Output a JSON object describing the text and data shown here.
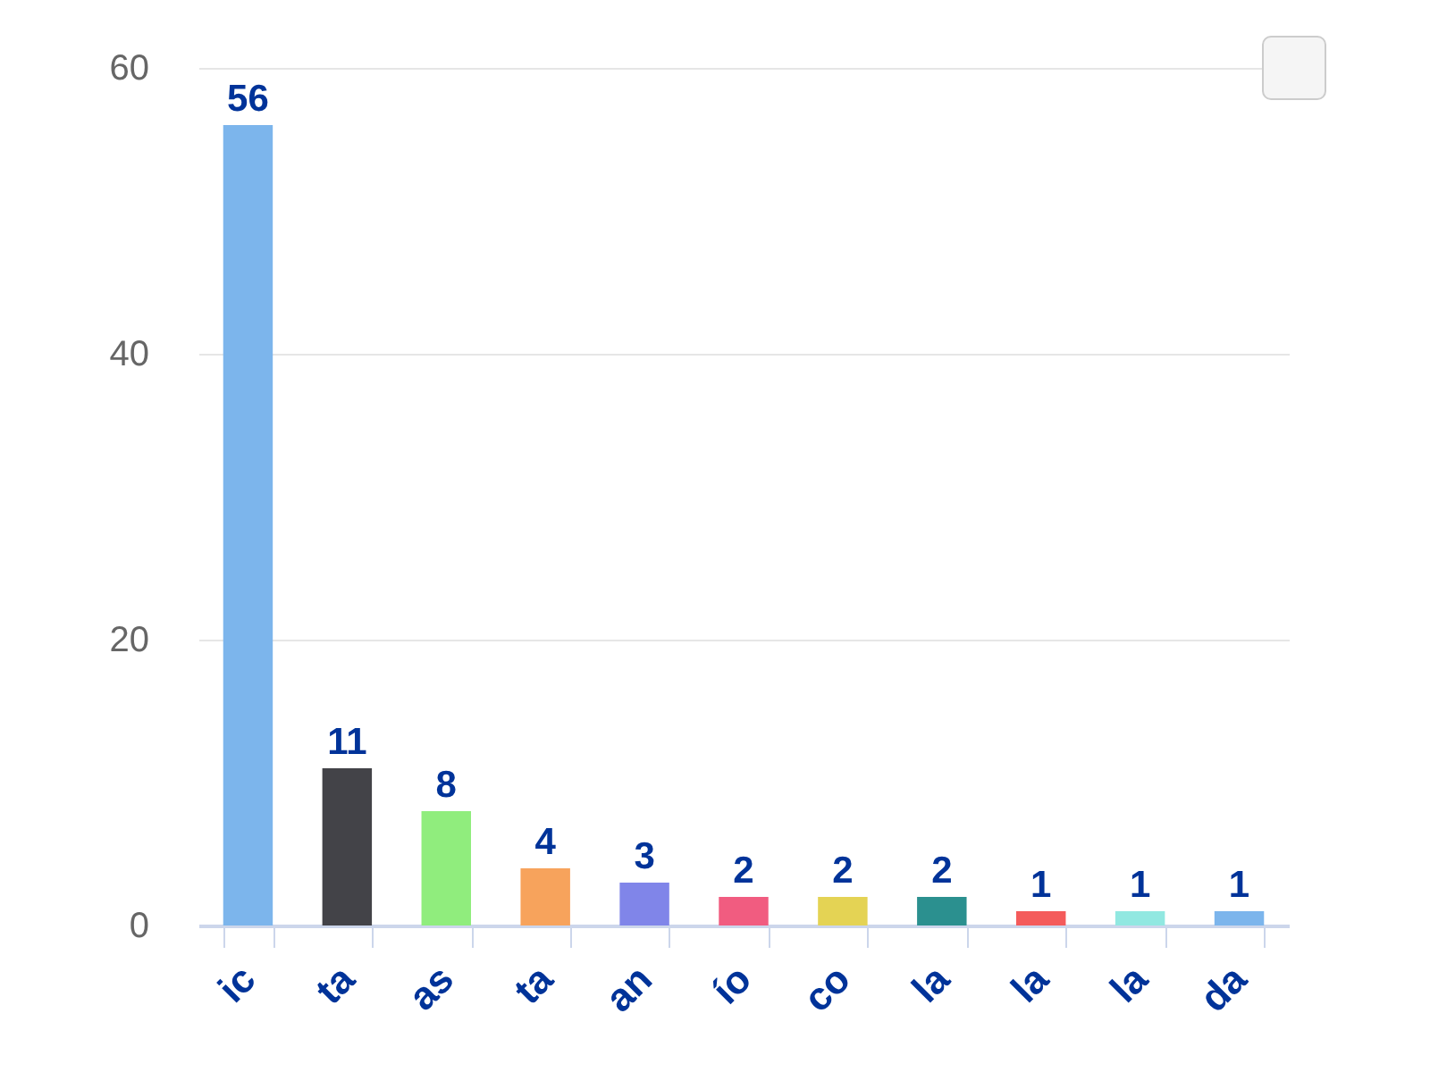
{
  "chart_data": {
    "type": "bar",
    "categories": [
      "ic",
      "ta",
      "as",
      "ta",
      "an",
      "ío",
      "co",
      "la",
      "la",
      "la",
      "da"
    ],
    "values": [
      56,
      11,
      8,
      4,
      3,
      2,
      2,
      2,
      1,
      1,
      1
    ],
    "colors": [
      "#7cb5ec",
      "#434348",
      "#90ed7d",
      "#f7a35c",
      "#8085e9",
      "#f15c80",
      "#e4d354",
      "#2b908f",
      "#f45b5b",
      "#91e8e1",
      "#7cb5ec"
    ],
    "ylim": [
      0,
      60
    ],
    "yticks": [
      0,
      20,
      40,
      60
    ],
    "grid": "y",
    "data_labels": true
  }
}
